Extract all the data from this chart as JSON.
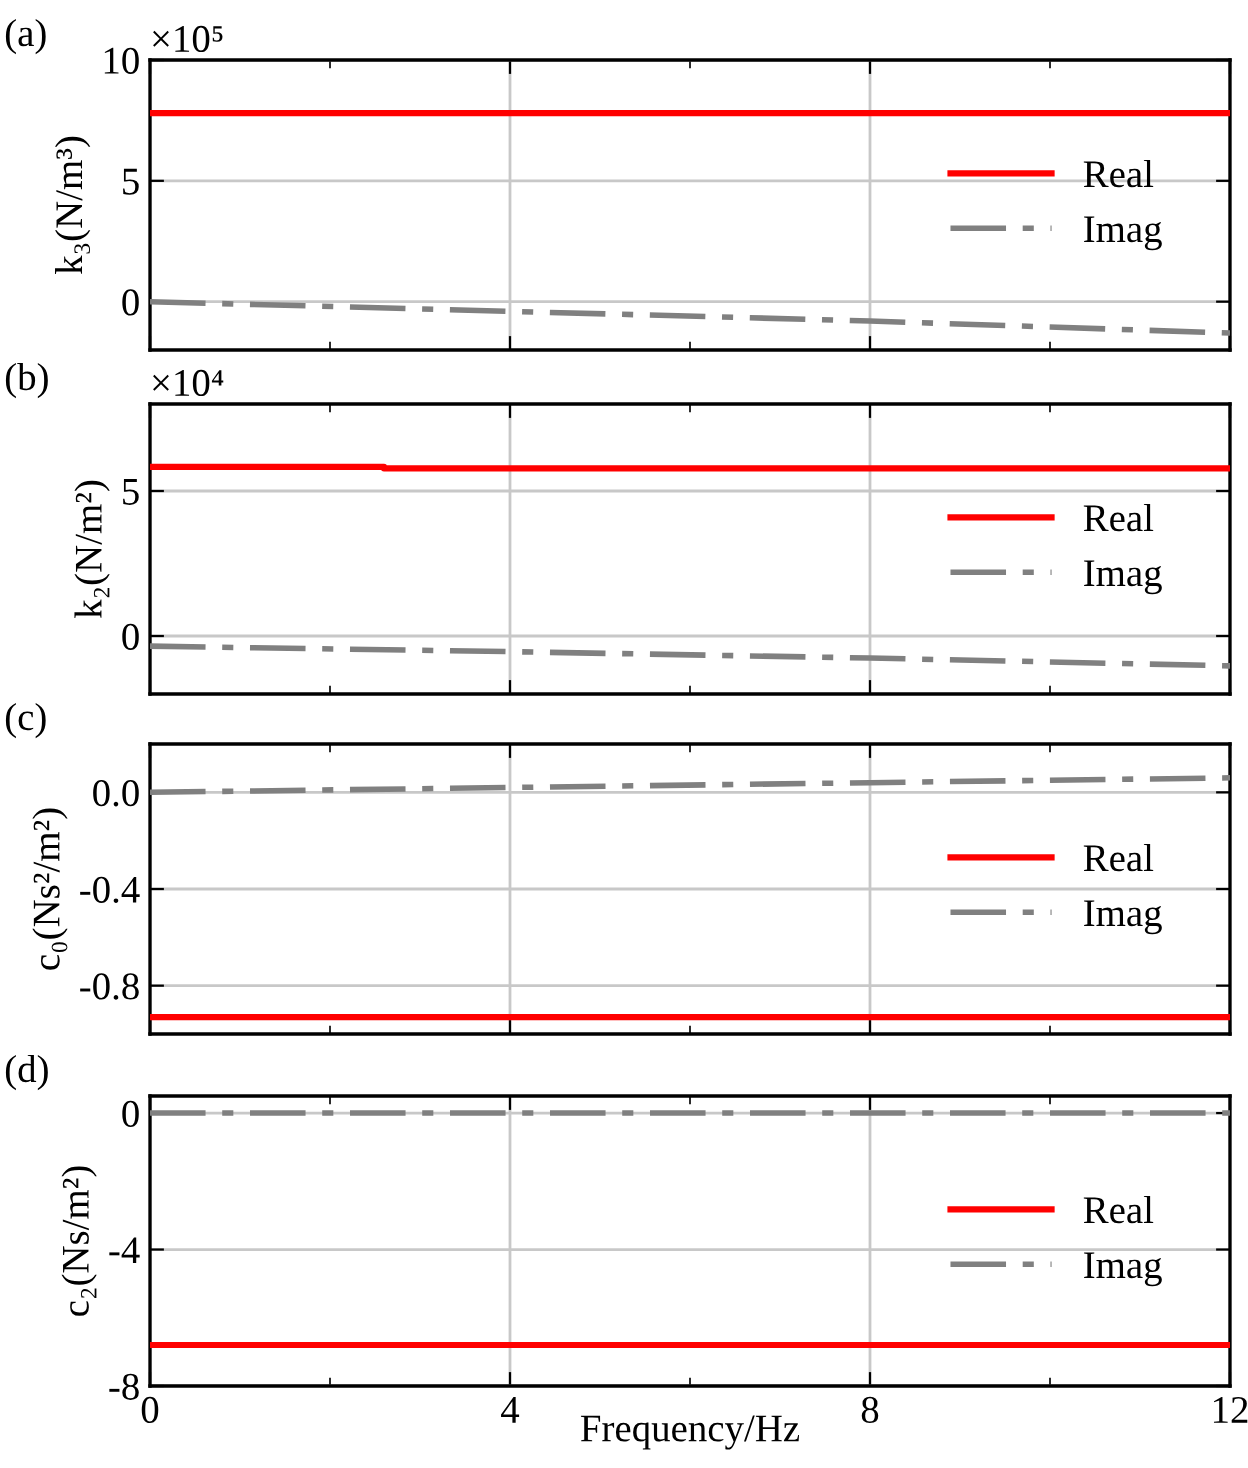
{
  "chart_data": [
    {
      "type": "line",
      "ylabel": "k₃(N/m³)",
      "annotations": [
        "(a)",
        "×10⁵"
      ],
      "x": [
        0,
        12
      ],
      "series": [
        {
          "name": "Real",
          "color": "#ff0000",
          "line_style": "solid",
          "values": [
            7.8,
            7.8
          ]
        },
        {
          "name": "Imag",
          "color": "#808080",
          "line_style": "dashdot",
          "x": [
            0,
            4,
            8,
            12
          ],
          "values": [
            0,
            -0.4,
            -0.8,
            -1.3
          ]
        }
      ],
      "xlim": [
        0,
        12
      ],
      "xticks": [
        0,
        {
          "value": 2,
          "label": null
        },
        4,
        {
          "value": 6,
          "label": null
        },
        8,
        {
          "value": 10,
          "label": null
        },
        12
      ],
      "ylim": [
        -2,
        10
      ],
      "yticks": [
        0,
        5,
        10
      ],
      "grid": true,
      "legend": "right",
      "tick_labels": "y"
    },
    {
      "type": "line",
      "ylabel": "k₂(N/m²)",
      "annotations": [
        "(b)",
        "×10⁴"
      ],
      "x": [
        0,
        2.6,
        2.6,
        12
      ],
      "series": [
        {
          "name": "Real",
          "color": "#ff0000",
          "line_style": "solid",
          "values": [
            5.83,
            5.83,
            5.78,
            5.78
          ]
        },
        {
          "name": "Imag",
          "color": "#808080",
          "line_style": "dashdot",
          "x": [
            0,
            4,
            8,
            12
          ],
          "values": [
            -0.35,
            -0.54,
            -0.76,
            -1.03
          ]
        }
      ],
      "xlim": [
        0,
        12
      ],
      "xticks": [
        0,
        {
          "value": 2,
          "label": null
        },
        4,
        {
          "value": 6,
          "label": null
        },
        8,
        {
          "value": 10,
          "label": null
        },
        12
      ],
      "ylim": [
        -2,
        8
      ],
      "yticks": [
        0,
        5
      ],
      "grid": true,
      "legend": "right",
      "tick_labels": "y"
    },
    {
      "type": "line",
      "ylabel": "c₀(Ns²/m²)",
      "annotations": [
        "(c)"
      ],
      "x": [
        0,
        12
      ],
      "series": [
        {
          "name": "Real",
          "color": "#ff0000",
          "line_style": "solid",
          "values": [
            -0.93,
            -0.93
          ]
        },
        {
          "name": "Imag",
          "color": "#808080",
          "line_style": "dashdot",
          "x": [
            0,
            4,
            8,
            12
          ],
          "values": [
            0,
            0.02,
            0.04,
            0.06
          ]
        }
      ],
      "xlim": [
        0,
        12
      ],
      "xticks": [
        0,
        {
          "value": 2,
          "label": null
        },
        4,
        {
          "value": 6,
          "label": null
        },
        8,
        {
          "value": 10,
          "label": null
        },
        12
      ],
      "ylim": [
        -1,
        0.2
      ],
      "yticks": [
        {
          "value": -0.8,
          "label": "-0.8"
        },
        {
          "value": -0.4,
          "label": "-0.4"
        },
        {
          "value": 0,
          "label": "0.0"
        }
      ],
      "grid": true,
      "legend": "right",
      "tick_labels": "y"
    },
    {
      "type": "line",
      "ylabel": "c₂(Ns/m²)",
      "xlabel": "Frequency/Hz",
      "annotations": [
        "(d)"
      ],
      "x": [
        0,
        12
      ],
      "series": [
        {
          "name": "Real",
          "color": "#ff0000",
          "line_style": "solid",
          "values": [
            -6.8,
            -6.8
          ]
        },
        {
          "name": "Imag",
          "color": "#808080",
          "line_style": "dashdot",
          "values": [
            0,
            0
          ]
        }
      ],
      "xlim": [
        0,
        12
      ],
      "xticks": [
        0,
        {
          "value": 2,
          "label": null
        },
        4,
        {
          "value": 6,
          "label": null
        },
        8,
        {
          "value": 10,
          "label": null
        },
        12
      ],
      "ylim": [
        -8,
        0.5
      ],
      "yticks": [
        {
          "value": -8,
          "label": "-8"
        },
        {
          "value": -4,
          "label": "-4"
        },
        0
      ],
      "grid": true,
      "legend": "right"
    }
  ]
}
